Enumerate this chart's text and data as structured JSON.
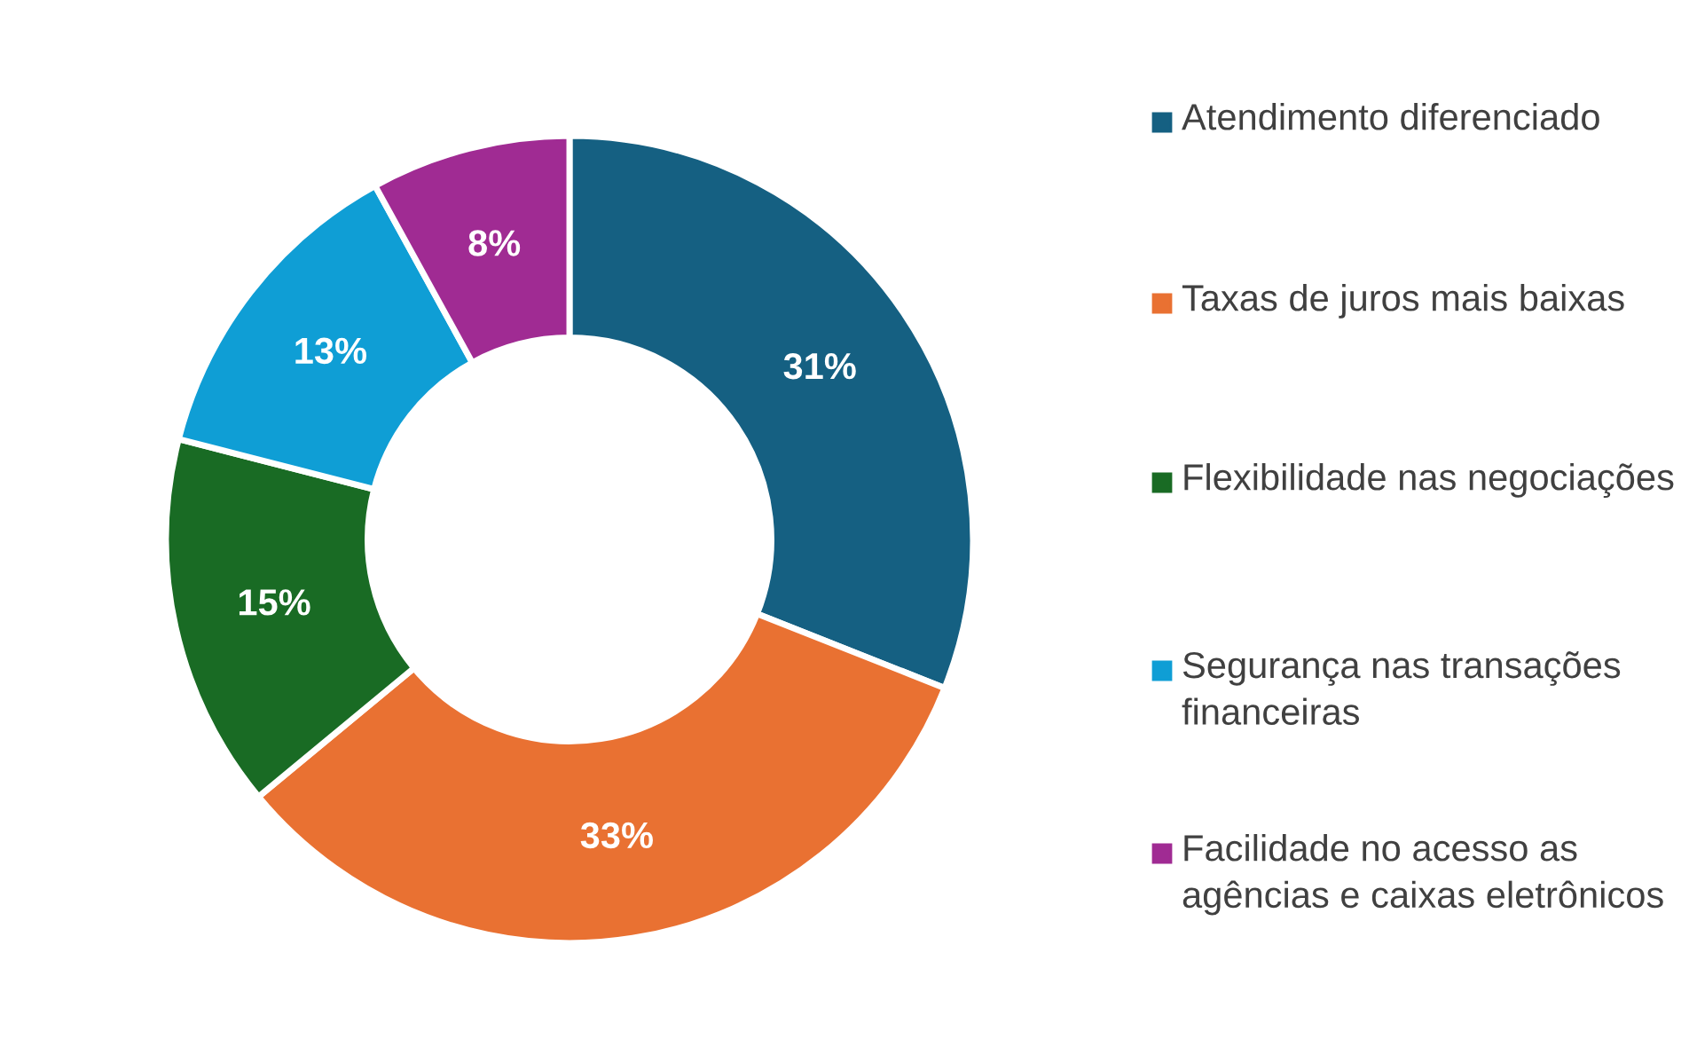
{
  "chart_data": {
    "type": "donut",
    "categories": [
      "Atendimento diferenciado",
      "Taxas de juros mais baixas",
      "Flexibilidade nas negociações",
      "Segurança nas transações financeiras",
      "Facilidade no acesso as agências e caixas eletrônicos"
    ],
    "values": [
      31,
      33,
      15,
      13,
      8
    ],
    "colors": [
      "#156082",
      "#e97132",
      "#196b24",
      "#0f9ed5",
      "#a02b93"
    ],
    "value_labels": [
      "31%",
      "33%",
      "15%",
      "13%",
      "8%"
    ],
    "legend": "right"
  }
}
